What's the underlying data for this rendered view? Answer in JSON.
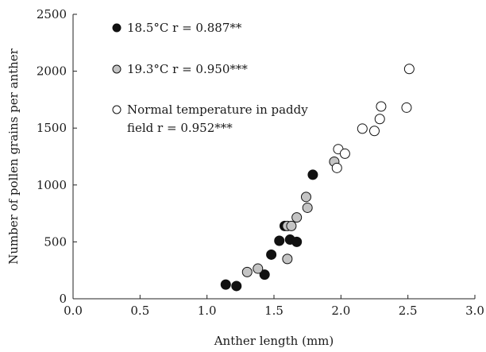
{
  "chart_data": {
    "type": "scatter",
    "title": "",
    "xlabel": "Anther length (mm)",
    "ylabel": "Number of pollen grains per anther",
    "xlim": [
      0.0,
      3.0
    ],
    "ylim": [
      0,
      2500
    ],
    "x_ticks": [
      "0.0",
      "0.5",
      "1.0",
      "1.5",
      "2.0",
      "2.5",
      "3.0"
    ],
    "y_ticks": [
      "0",
      "500",
      "1000",
      "1500",
      "2000",
      "2500"
    ],
    "grid": false,
    "legend_position": "top-left",
    "series": [
      {
        "name": "18.5°C r = 0.887**",
        "marker": "filled",
        "color": "#111111",
        "points": [
          {
            "x": 1.14,
            "y": 125
          },
          {
            "x": 1.22,
            "y": 112
          },
          {
            "x": 1.43,
            "y": 212
          },
          {
            "x": 1.48,
            "y": 388
          },
          {
            "x": 1.54,
            "y": 510
          },
          {
            "x": 1.58,
            "y": 640
          },
          {
            "x": 1.62,
            "y": 520
          },
          {
            "x": 1.67,
            "y": 500
          },
          {
            "x": 1.79,
            "y": 1090
          }
        ]
      },
      {
        "name": "19.3°C r = 0.950***",
        "marker": "gray",
        "color": "#c4c4c4",
        "points": [
          {
            "x": 1.3,
            "y": 235
          },
          {
            "x": 1.38,
            "y": 265
          },
          {
            "x": 1.6,
            "y": 350
          },
          {
            "x": 1.6,
            "y": 640
          },
          {
            "x": 1.63,
            "y": 640
          },
          {
            "x": 1.67,
            "y": 715
          },
          {
            "x": 1.74,
            "y": 895
          },
          {
            "x": 1.75,
            "y": 800
          },
          {
            "x": 1.95,
            "y": 1205
          }
        ]
      },
      {
        "name": "Normal temperature in paddy field  r = 0.952***",
        "name_lines": [
          "Normal temperature in paddy",
          "field  r = 0.952***"
        ],
        "marker": "open",
        "color": "#ffffff",
        "points": [
          {
            "x": 1.97,
            "y": 1150
          },
          {
            "x": 1.98,
            "y": 1315
          },
          {
            "x": 2.03,
            "y": 1275
          },
          {
            "x": 2.16,
            "y": 1495
          },
          {
            "x": 2.25,
            "y": 1475
          },
          {
            "x": 2.29,
            "y": 1580
          },
          {
            "x": 2.3,
            "y": 1690
          },
          {
            "x": 2.49,
            "y": 1680
          },
          {
            "x": 2.51,
            "y": 2020
          }
        ]
      }
    ]
  }
}
